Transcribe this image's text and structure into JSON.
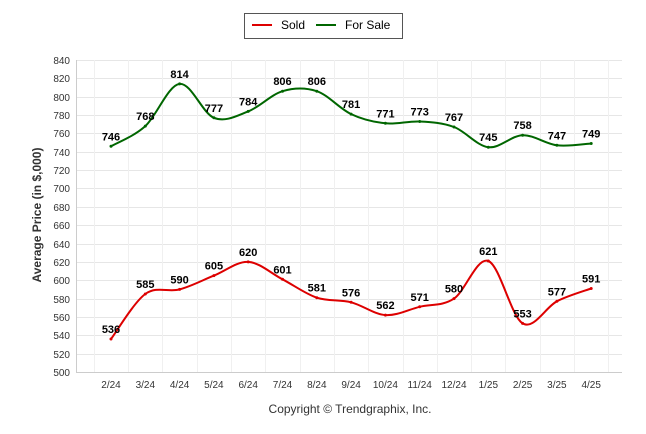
{
  "chart_data": {
    "type": "line",
    "categories": [
      "2/24",
      "3/24",
      "4/24",
      "5/24",
      "6/24",
      "7/24",
      "8/24",
      "9/24",
      "10/24",
      "11/24",
      "12/24",
      "1/25",
      "2/25",
      "3/25",
      "4/25"
    ],
    "series": [
      {
        "name": "Sold",
        "color": "#dd0000",
        "values": [
          536,
          585,
          590,
          605,
          620,
          601,
          581,
          576,
          562,
          571,
          580,
          621,
          553,
          577,
          591
        ]
      },
      {
        "name": "For Sale",
        "color": "#006600",
        "values": [
          746,
          768,
          814,
          777,
          784,
          806,
          806,
          781,
          771,
          773,
          767,
          745,
          758,
          747,
          749
        ]
      }
    ],
    "title": "",
    "xlabel": "",
    "ylabel": "Average Price (in $,000)",
    "ylim": [
      500,
      840
    ],
    "ytick_step": 20,
    "grid": true,
    "legend_position": "top-center"
  },
  "credit": "Copyright © Trendgraphix, Inc."
}
